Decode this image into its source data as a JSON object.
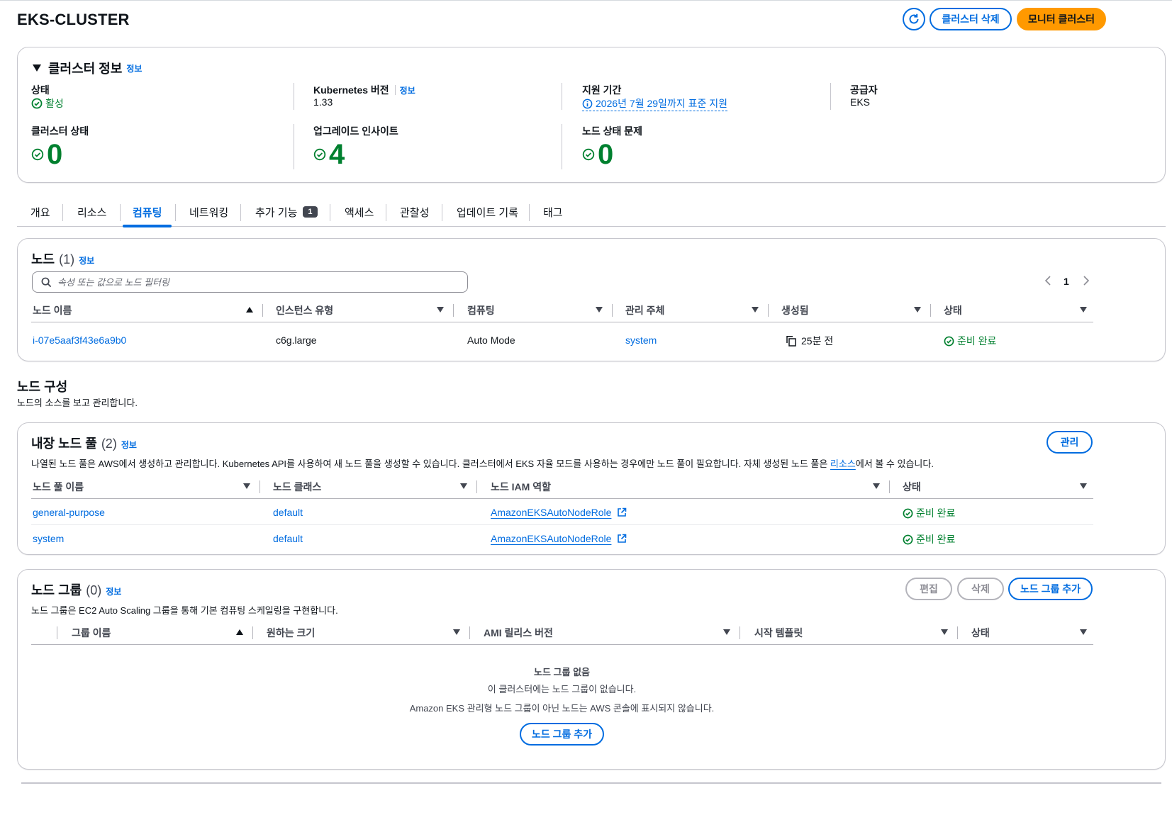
{
  "header": {
    "title": "EKS-CLUSTER",
    "delete_label": "클러스터 삭제",
    "monitor_label": "모니터 클러스터"
  },
  "cluster_info": {
    "title": "클러스터 정보",
    "info_label": "정보",
    "status_label": "상태",
    "status_value": "활성",
    "k8s_label": "Kubernetes 버전",
    "k8s_info": "정보",
    "k8s_value": "1.33",
    "support_label": "지원 기간",
    "support_value": "2026년 7월 29일까지 표준 지원",
    "provider_label": "공급자",
    "provider_value": "EKS",
    "health_label": "클러스터 상태",
    "health_value": "0",
    "insights_label": "업그레이드 인사이트",
    "insights_value": "4",
    "node_issues_label": "노드 상태 문제",
    "node_issues_value": "0"
  },
  "tabs": [
    {
      "label": "개요"
    },
    {
      "label": "리소스"
    },
    {
      "label": "컴퓨팅",
      "active": true
    },
    {
      "label": "네트워킹"
    },
    {
      "label": "추가 기능",
      "badge": "1"
    },
    {
      "label": "액세스"
    },
    {
      "label": "관찰성"
    },
    {
      "label": "업데이트 기록"
    },
    {
      "label": "태그"
    }
  ],
  "nodes": {
    "title": "노드",
    "count": "(1)",
    "info_label": "정보",
    "search_placeholder": "속성 또는 값으로 노드 필터링",
    "page": "1",
    "columns": [
      "노드 이름",
      "인스턴스 유형",
      "컴퓨팅",
      "관리 주체",
      "생성됨",
      "상태"
    ],
    "rows": [
      {
        "name": "i-07e5aaf3f43e6a9b0",
        "instance_type": "c6g.large",
        "compute": "Auto Mode",
        "managed_by": "system",
        "created": "25분 전",
        "status": "준비 완료"
      }
    ]
  },
  "node_config": {
    "title": "노드 구성",
    "subtitle": "노드의 소스를 보고 관리합니다."
  },
  "node_pools": {
    "title": "내장 노드 풀",
    "count": "(2)",
    "info_label": "정보",
    "manage_label": "관리",
    "description_pre": "나열된 노드 풀은 AWS에서 생성하고 관리합니다. Kubernetes API를 사용하여 새 노드 풀을 생성할 수 있습니다. 클러스터에서 EKS 자율 모드를 사용하는 경우에만 노드 풀이 필요합니다. 자체 생성된 노드 풀은 ",
    "description_link": "리소스",
    "description_post": "에서 볼 수 있습니다.",
    "columns": [
      "노드 풀 이름",
      "노드 클래스",
      "노드 IAM 역할",
      "상태"
    ],
    "rows": [
      {
        "name": "general-purpose",
        "node_class": "default",
        "iam_role": "AmazonEKSAutoNodeRole",
        "status": "준비 완료"
      },
      {
        "name": "system",
        "node_class": "default",
        "iam_role": "AmazonEKSAutoNodeRole",
        "status": "준비 완료"
      }
    ]
  },
  "node_groups": {
    "title": "노드 그룹",
    "count": "(0)",
    "info_label": "정보",
    "edit_label": "편집",
    "delete_label": "삭제",
    "add_label": "노드 그룹 추가",
    "description": "노드 그룹은 EC2 Auto Scaling 그룹을 통해 기본 컴퓨팅 스케일링을 구현합니다.",
    "columns": [
      "그룹 이름",
      "원하는 크기",
      "AMI 릴리스 버전",
      "시작 템플릿",
      "상태"
    ],
    "empty_title": "노드 그룹 없음",
    "empty_line1": "이 클러스터에는 노드 그룹이 없습니다.",
    "empty_line2": "Amazon EKS 관리형 노드 그룹이 아닌 노드는 AWS 콘솔에 표시되지 않습니다.",
    "empty_add_label": "노드 그룹 추가"
  },
  "colors": {
    "link": "#006ce0",
    "success": "#00802f",
    "primary_button": "#ff9900",
    "border": "#c6c6cd"
  },
  "icons": [
    "refresh-icon",
    "caret-down-icon",
    "status-success-icon",
    "info-circle-icon",
    "search-icon",
    "copy-icon",
    "external-link-icon",
    "chevron-left-icon",
    "chevron-right-icon",
    "sort-ascending-icon",
    "sort-icon"
  ]
}
